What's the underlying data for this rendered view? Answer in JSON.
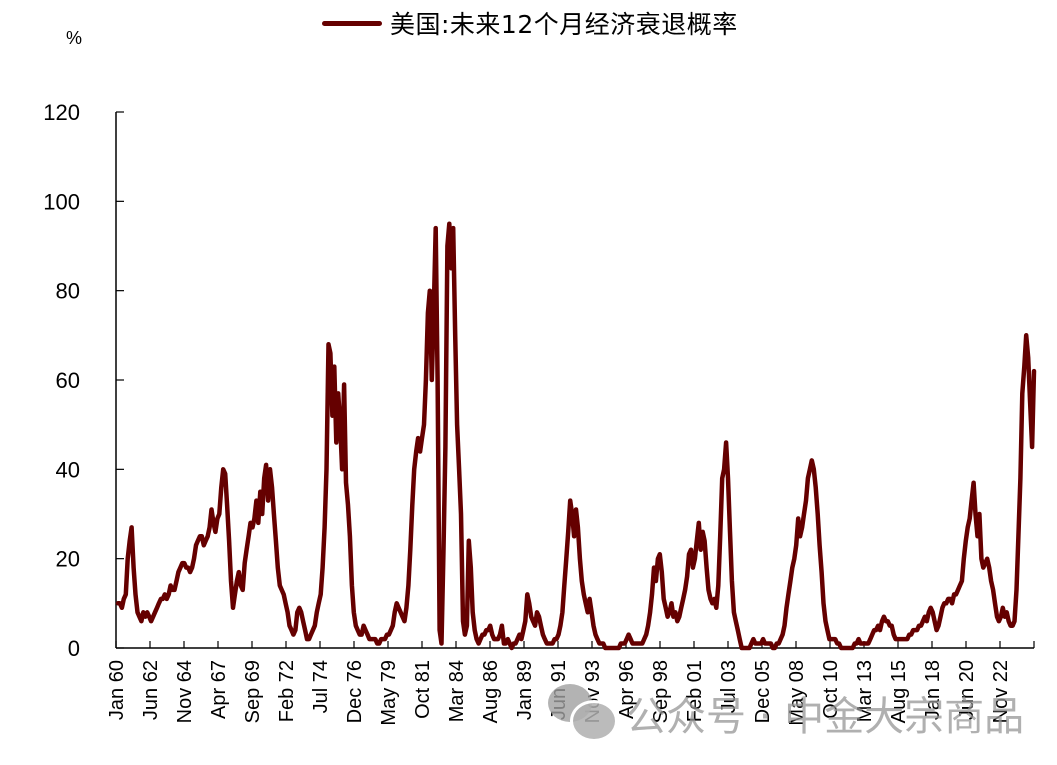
{
  "legend": {
    "label": "美国:未来12个月经济衰退概率",
    "color": "#650000"
  },
  "y_unit": "%",
  "watermark": {
    "text": "公众号 · 中金大宗商品",
    "icon": "wechat-icon"
  },
  "chart_data": {
    "type": "line",
    "title": "",
    "xlabel": "",
    "ylabel": "%",
    "ylim": [
      0,
      120
    ],
    "yticks": [
      0,
      20,
      40,
      60,
      80,
      100,
      120
    ],
    "grid": false,
    "legend_position": "top",
    "xtick_labels": [
      "Jan 60",
      "Jun 62",
      "Nov 64",
      "Apr 67",
      "Sep 69",
      "Feb 72",
      "Jul 74",
      "Dec 76",
      "May 79",
      "Oct 81",
      "Mar 84",
      "Aug 86",
      "Jan 89",
      "Jun 91",
      "Nov 93",
      "Apr 96",
      "Sep 98",
      "Feb 01",
      "Jul 03",
      "Dec 05",
      "May 08",
      "Oct 10",
      "Mar 13",
      "Aug 15",
      "Jan 18",
      "Jun 20",
      "Nov 22"
    ],
    "x_start": "1960-01",
    "x_step_months": 2,
    "series": [
      {
        "name": "美国:未来12个月经济衰退概率",
        "color": "#650000",
        "values": [
          10,
          10,
          9,
          11,
          12,
          20,
          24,
          27,
          18,
          12,
          8,
          7,
          6,
          8,
          7,
          8,
          7,
          6,
          7,
          8,
          9,
          10,
          11,
          11,
          12,
          11,
          12,
          14,
          13,
          13,
          15,
          17,
          18,
          19,
          19,
          18,
          18,
          17,
          18,
          20,
          23,
          24,
          25,
          25,
          23,
          24,
          25,
          27,
          31,
          28,
          26,
          29,
          30,
          36,
          40,
          39,
          32,
          24,
          15,
          9,
          12,
          15,
          17,
          14,
          13,
          19,
          22,
          25,
          28,
          27,
          29,
          33,
          28,
          35,
          30,
          38,
          41,
          33,
          40,
          36,
          30,
          24,
          18,
          14,
          13,
          12,
          10,
          8,
          5,
          4,
          3,
          4,
          8,
          9,
          8,
          6,
          4,
          2,
          2,
          3,
          4,
          5,
          8,
          10,
          12,
          18,
          27,
          40,
          68,
          66,
          52,
          63,
          46,
          57,
          50,
          40,
          59,
          37,
          32,
          25,
          14,
          8,
          5,
          4,
          3,
          3,
          5,
          4,
          3,
          2,
          2,
          2,
          2,
          1,
          1,
          2,
          2,
          2,
          3,
          3,
          4,
          5,
          8,
          10,
          9,
          8,
          7,
          6,
          9,
          14,
          22,
          32,
          40,
          44,
          47,
          44,
          47,
          50,
          60,
          75,
          80,
          60,
          75,
          94,
          60,
          4,
          1,
          22,
          45,
          90,
          95,
          85,
          94,
          70,
          50,
          40,
          30,
          6,
          3,
          5,
          24,
          18,
          8,
          4,
          2,
          1,
          2,
          3,
          3,
          4,
          4,
          5,
          3,
          2,
          2,
          2,
          3,
          5,
          1,
          1,
          2,
          1,
          0,
          1,
          1,
          2,
          3,
          2,
          4,
          6,
          12,
          10,
          7,
          6,
          5,
          8,
          7,
          5,
          3,
          2,
          1,
          1,
          1,
          1,
          2,
          2,
          3,
          5,
          8,
          14,
          20,
          26,
          33,
          30,
          25,
          31,
          27,
          20,
          15,
          12,
          10,
          8,
          11,
          8,
          5,
          3,
          2,
          1,
          1,
          1,
          0,
          0,
          0,
          0,
          0,
          0,
          0,
          0,
          1,
          1,
          1,
          2,
          3,
          2,
          1,
          1,
          1,
          1,
          1,
          1,
          2,
          3,
          5,
          8,
          12,
          18,
          15,
          20,
          21,
          17,
          11,
          9,
          7,
          8,
          10,
          7,
          8,
          6,
          7,
          9,
          11,
          13,
          16,
          21,
          22,
          18,
          20,
          24,
          28,
          22,
          26,
          24,
          18,
          13,
          11,
          10,
          11,
          9,
          14,
          25,
          38,
          40,
          46,
          38,
          26,
          15,
          8,
          6,
          4,
          2,
          0,
          0,
          0,
          0,
          0,
          1,
          2,
          1,
          1,
          1,
          1,
          2,
          1,
          1,
          1,
          1,
          0,
          0,
          1,
          1,
          2,
          3,
          5,
          9,
          12,
          15,
          18,
          20,
          23,
          29,
          25,
          27,
          30,
          33,
          38,
          40,
          42,
          40,
          36,
          30,
          23,
          17,
          10,
          6,
          4,
          2,
          2,
          2,
          2,
          1,
          1,
          0,
          0,
          0,
          0,
          0,
          0,
          0,
          1,
          1,
          2,
          1,
          1,
          1,
          1,
          1,
          2,
          3,
          4,
          4,
          5,
          4,
          6,
          7,
          6,
          6,
          5,
          5,
          3,
          2,
          2,
          2,
          2,
          2,
          2,
          2,
          3,
          3,
          4,
          4,
          4,
          5,
          5,
          6,
          7,
          6,
          8,
          9,
          8,
          6,
          4,
          5,
          7,
          9,
          10,
          10,
          11,
          11,
          10,
          12,
          12,
          13,
          14,
          15,
          20,
          24,
          27,
          29,
          33,
          37,
          30,
          25,
          30,
          20,
          18,
          19,
          20,
          18,
          15,
          13,
          10,
          7,
          6,
          7,
          9,
          7,
          8,
          6,
          5,
          5,
          6,
          13,
          25,
          38,
          57,
          63,
          70,
          65,
          55,
          45,
          62
        ]
      }
    ]
  }
}
